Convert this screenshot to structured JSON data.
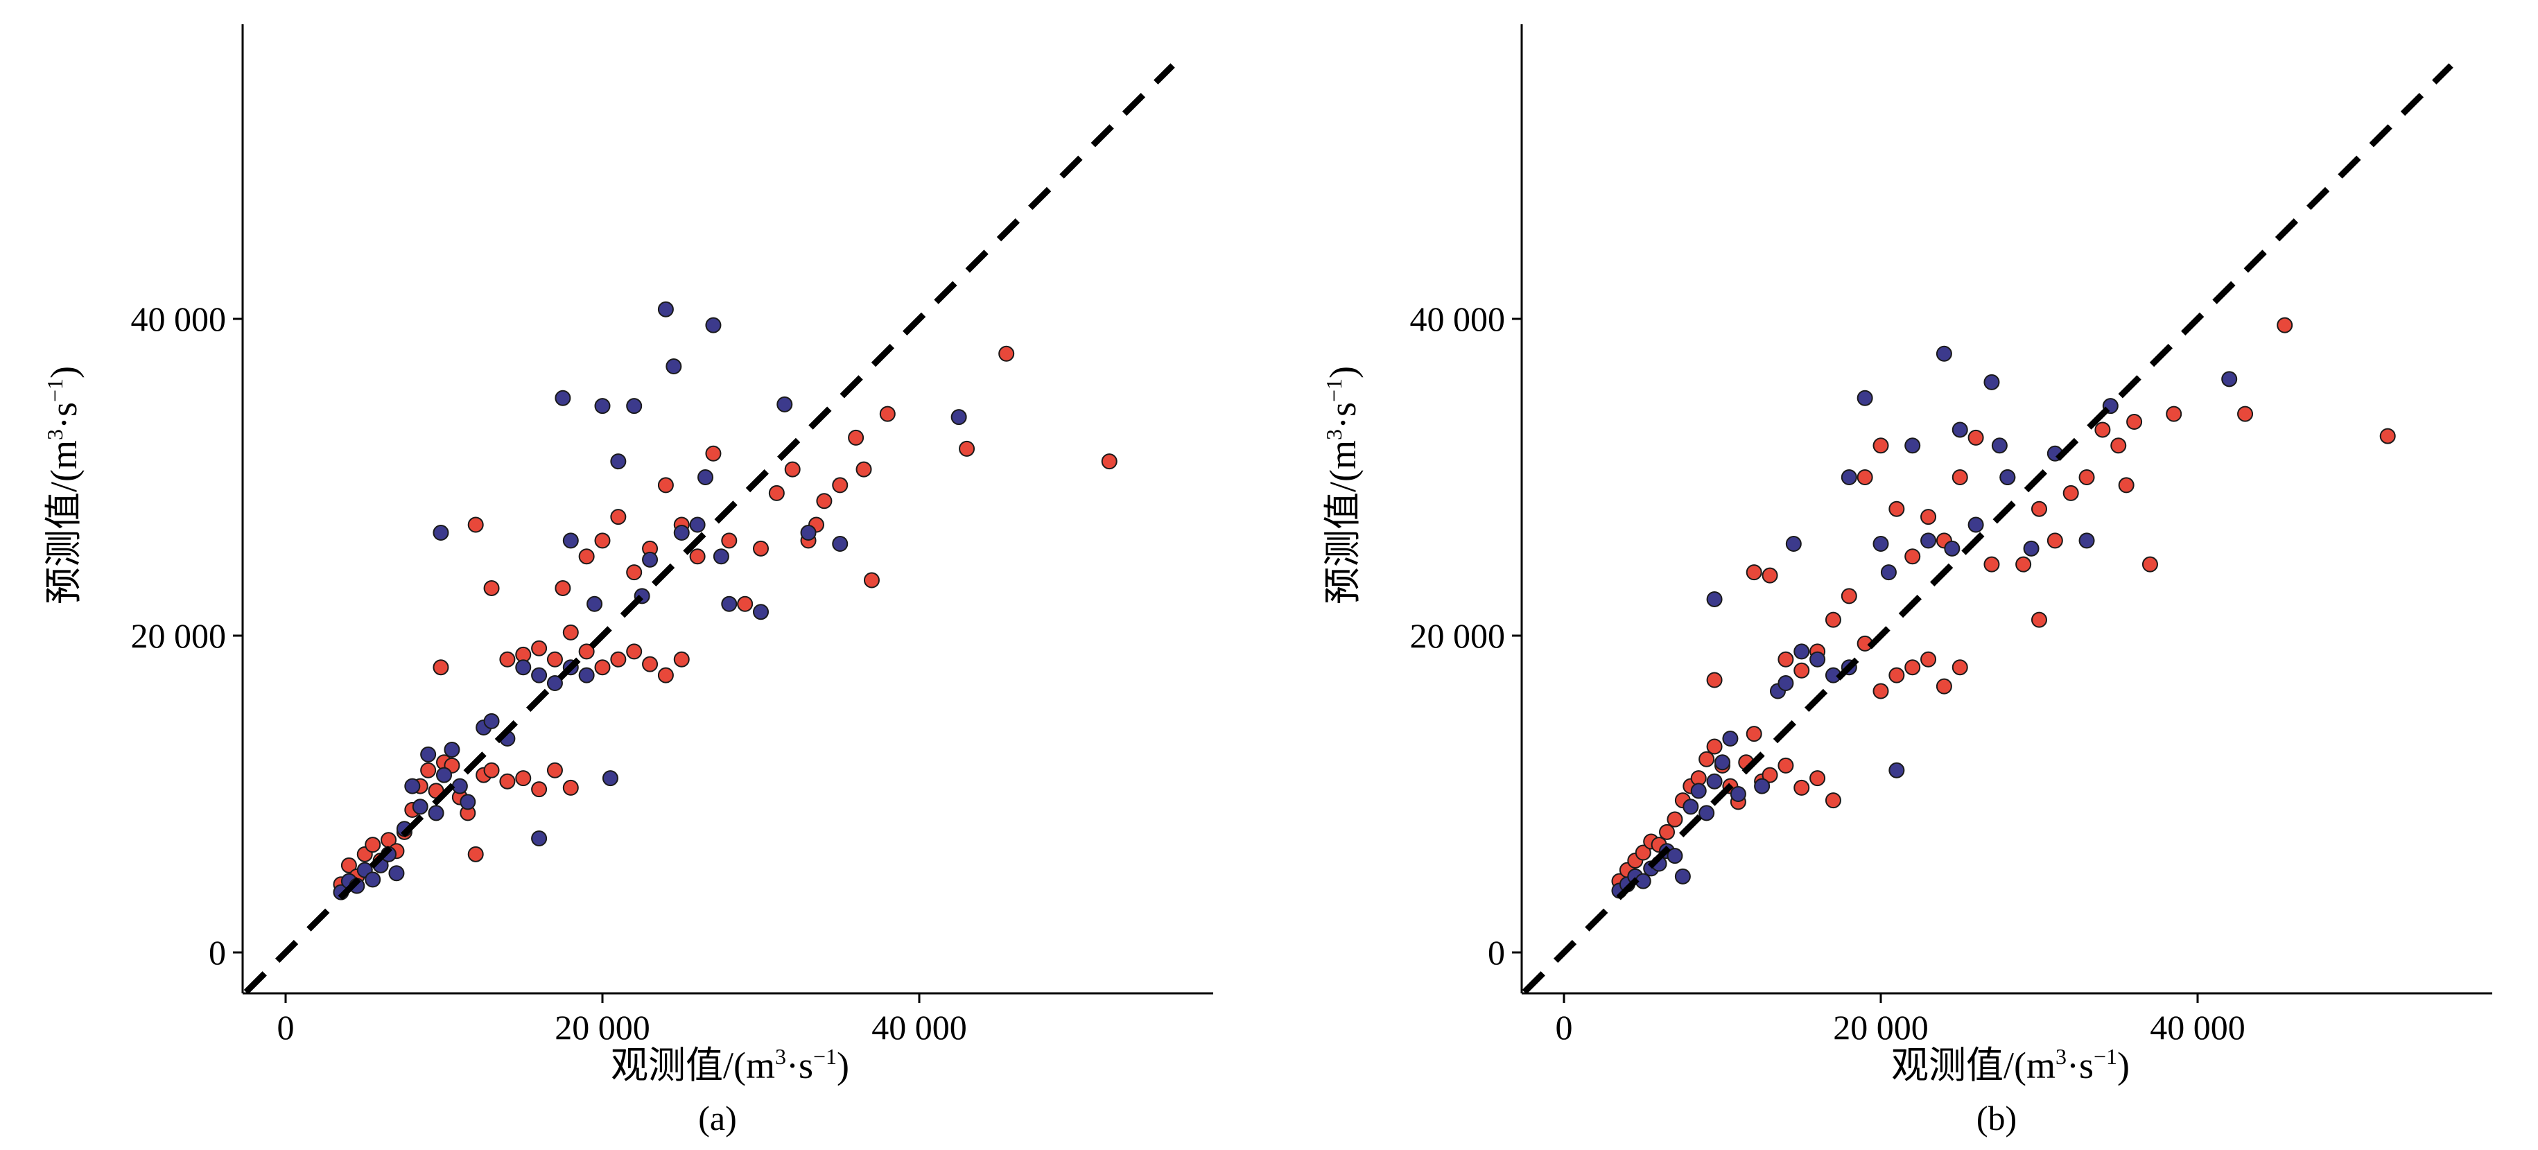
{
  "chart_data": [
    {
      "id": "a",
      "type": "scatter",
      "panel_label": "(a)",
      "xlabel": {
        "main": "观测值/(m",
        "sup1": "3",
        "mid": "·s",
        "sup2": "−1",
        "end": ")"
      },
      "ylabel": {
        "main": "预测值/(m",
        "sup1": "3",
        "mid": "·s",
        "sup2": "−1",
        "end": ")"
      },
      "xlim": [
        -2500,
        59000
      ],
      "ylim": [
        -2500,
        58000
      ],
      "xticks": [
        0,
        20000,
        40000
      ],
      "yticks": [
        0,
        20000,
        40000
      ],
      "xtick_labels": [
        "0",
        "20 000",
        "40 000"
      ],
      "ytick_labels": [
        "0",
        "20 000",
        "40 000"
      ],
      "reference_line": {
        "style": "dashed",
        "from": [
          -2500,
          -2500
        ],
        "to": [
          56000,
          56000
        ]
      },
      "series": [
        {
          "name": "red",
          "color": "#e8483a",
          "points": [
            [
              3500,
              4300
            ],
            [
              4000,
              5500
            ],
            [
              4500,
              4800
            ],
            [
              5000,
              6200
            ],
            [
              5500,
              6800
            ],
            [
              6000,
              5800
            ],
            [
              6500,
              7100
            ],
            [
              7000,
              6400
            ],
            [
              7500,
              7600
            ],
            [
              8000,
              9000
            ],
            [
              8500,
              10500
            ],
            [
              9000,
              11500
            ],
            [
              9500,
              10200
            ],
            [
              10000,
              12000
            ],
            [
              10500,
              11800
            ],
            [
              11000,
              9800
            ],
            [
              11500,
              8800
            ],
            [
              12000,
              6200
            ],
            [
              12500,
              11200
            ],
            [
              13000,
              11500
            ],
            [
              14000,
              10800
            ],
            [
              15000,
              11000
            ],
            [
              16000,
              10300
            ],
            [
              17000,
              11500
            ],
            [
              18000,
              10400
            ],
            [
              9800,
              18000
            ],
            [
              12000,
              27000
            ],
            [
              13000,
              23000
            ],
            [
              14000,
              18500
            ],
            [
              15000,
              18800
            ],
            [
              16000,
              19200
            ],
            [
              17000,
              18500
            ],
            [
              17500,
              23000
            ],
            [
              18000,
              20200
            ],
            [
              19000,
              19000
            ],
            [
              20000,
              18000
            ],
            [
              21000,
              18500
            ],
            [
              22000,
              19000
            ],
            [
              23000,
              18200
            ],
            [
              24000,
              17500
            ],
            [
              25000,
              18500
            ],
            [
              19000,
              25000
            ],
            [
              20000,
              26000
            ],
            [
              21000,
              27500
            ],
            [
              22000,
              24000
            ],
            [
              23000,
              25500
            ],
            [
              24000,
              29500
            ],
            [
              25000,
              27000
            ],
            [
              26000,
              25000
            ],
            [
              27000,
              31500
            ],
            [
              28000,
              26000
            ],
            [
              29000,
              22000
            ],
            [
              30000,
              25500
            ],
            [
              31000,
              29000
            ],
            [
              32000,
              30500
            ],
            [
              33000,
              26000
            ],
            [
              34000,
              28500
            ],
            [
              35000,
              29500
            ],
            [
              36000,
              32500
            ],
            [
              37000,
              23500
            ],
            [
              38000,
              34000
            ],
            [
              43000,
              31800
            ],
            [
              45500,
              37800
            ],
            [
              52000,
              31000
            ],
            [
              36500,
              30500
            ],
            [
              33500,
              27000
            ]
          ]
        },
        {
          "name": "blue",
          "color": "#3c3a8c",
          "points": [
            [
              3500,
              3800
            ],
            [
              4000,
              4500
            ],
            [
              4500,
              4200
            ],
            [
              5000,
              5200
            ],
            [
              5500,
              4600
            ],
            [
              6000,
              5500
            ],
            [
              6500,
              6200
            ],
            [
              7000,
              5000
            ],
            [
              7500,
              7800
            ],
            [
              8000,
              10500
            ],
            [
              8500,
              9200
            ],
            [
              9000,
              12500
            ],
            [
              9500,
              8800
            ],
            [
              10000,
              11200
            ],
            [
              10500,
              12800
            ],
            [
              11000,
              10500
            ],
            [
              11500,
              9500
            ],
            [
              12500,
              14200
            ],
            [
              13000,
              14600
            ],
            [
              14000,
              13500
            ],
            [
              15000,
              18000
            ],
            [
              16000,
              17500
            ],
            [
              17000,
              17000
            ],
            [
              17500,
              35000
            ],
            [
              18000,
              18000
            ],
            [
              19000,
              17500
            ],
            [
              20000,
              34500
            ],
            [
              21000,
              31000
            ],
            [
              22000,
              34500
            ],
            [
              23000,
              24800
            ],
            [
              24000,
              40600
            ],
            [
              24500,
              37000
            ],
            [
              27000,
              39600
            ],
            [
              16000,
              7200
            ],
            [
              20500,
              11000
            ],
            [
              9800,
              26500
            ],
            [
              25000,
              26500
            ],
            [
              26000,
              27000
            ],
            [
              27500,
              25000
            ],
            [
              28000,
              22000
            ],
            [
              30000,
              21500
            ],
            [
              31500,
              34600
            ],
            [
              33000,
              26500
            ],
            [
              35000,
              25800
            ],
            [
              42500,
              33800
            ],
            [
              18000,
              26000
            ],
            [
              19500,
              22000
            ],
            [
              22500,
              22500
            ],
            [
              26500,
              30000
            ]
          ]
        }
      ]
    },
    {
      "id": "b",
      "type": "scatter",
      "panel_label": "(b)",
      "xlabel": {
        "main": "观测值/(m",
        "sup1": "3",
        "mid": "·s",
        "sup2": "−1",
        "end": ")"
      },
      "ylabel": {
        "main": "预测值/(m",
        "sup1": "3",
        "mid": "·s",
        "sup2": "−1",
        "end": ")"
      },
      "xlim": [
        -2500,
        59000
      ],
      "ylim": [
        -2500,
        58000
      ],
      "xticks": [
        0,
        20000,
        40000
      ],
      "yticks": [
        0,
        20000,
        40000
      ],
      "xtick_labels": [
        "0",
        "20 000",
        "40 000"
      ],
      "ytick_labels": [
        "0",
        "20 000",
        "40 000"
      ],
      "reference_line": {
        "style": "dashed",
        "from": [
          -2500,
          -2500
        ],
        "to": [
          56000,
          56000
        ]
      },
      "series": [
        {
          "name": "red",
          "color": "#e8483a",
          "points": [
            [
              3500,
              4500
            ],
            [
              4000,
              5200
            ],
            [
              4500,
              5800
            ],
            [
              5000,
              6300
            ],
            [
              5500,
              7000
            ],
            [
              6000,
              6800
            ],
            [
              6500,
              7600
            ],
            [
              7000,
              8400
            ],
            [
              7500,
              9600
            ],
            [
              8000,
              10500
            ],
            [
              8500,
              11000
            ],
            [
              9000,
              12200
            ],
            [
              9500,
              13000
            ],
            [
              10000,
              11800
            ],
            [
              10500,
              10500
            ],
            [
              11000,
              9500
            ],
            [
              11500,
              12000
            ],
            [
              12000,
              13800
            ],
            [
              12500,
              10800
            ],
            [
              13000,
              11200
            ],
            [
              14000,
              11800
            ],
            [
              15000,
              10400
            ],
            [
              16000,
              11000
            ],
            [
              17000,
              9600
            ],
            [
              9500,
              17200
            ],
            [
              12000,
              24000
            ],
            [
              13000,
              23800
            ],
            [
              14000,
              18500
            ],
            [
              15000,
              17800
            ],
            [
              16000,
              19000
            ],
            [
              17000,
              21000
            ],
            [
              18000,
              22500
            ],
            [
              19000,
              19500
            ],
            [
              20000,
              16500
            ],
            [
              21000,
              17500
            ],
            [
              22000,
              18000
            ],
            [
              23000,
              18500
            ],
            [
              24000,
              16800
            ],
            [
              25000,
              18000
            ],
            [
              19000,
              30000
            ],
            [
              20000,
              32000
            ],
            [
              21000,
              28000
            ],
            [
              22000,
              25000
            ],
            [
              23000,
              27500
            ],
            [
              24000,
              26000
            ],
            [
              25000,
              30000
            ],
            [
              26000,
              32500
            ],
            [
              27000,
              24500
            ],
            [
              28000,
              30000
            ],
            [
              29000,
              24500
            ],
            [
              30000,
              28000
            ],
            [
              31000,
              26000
            ],
            [
              32000,
              29000
            ],
            [
              33000,
              30000
            ],
            [
              34000,
              33000
            ],
            [
              35000,
              32000
            ],
            [
              36000,
              33500
            ],
            [
              37000,
              24500
            ],
            [
              38500,
              34000
            ],
            [
              43000,
              34000
            ],
            [
              45500,
              39600
            ],
            [
              52000,
              32600
            ],
            [
              35500,
              29500
            ],
            [
              30000,
              21000
            ]
          ]
        },
        {
          "name": "blue",
          "color": "#3c3a8c",
          "points": [
            [
              3500,
              3900
            ],
            [
              4000,
              4300
            ],
            [
              4500,
              4800
            ],
            [
              5000,
              4500
            ],
            [
              5500,
              5300
            ],
            [
              6000,
              5600
            ],
            [
              6500,
              6400
            ],
            [
              7000,
              6100
            ],
            [
              7500,
              4800
            ],
            [
              8000,
              9200
            ],
            [
              8500,
              10200
            ],
            [
              9000,
              8800
            ],
            [
              9500,
              10800
            ],
            [
              10000,
              12000
            ],
            [
              10500,
              13500
            ],
            [
              11000,
              10000
            ],
            [
              12500,
              10500
            ],
            [
              13500,
              16500
            ],
            [
              14000,
              17000
            ],
            [
              15000,
              19000
            ],
            [
              16000,
              18500
            ],
            [
              17000,
              17500
            ],
            [
              18000,
              18000
            ],
            [
              19000,
              35000
            ],
            [
              20000,
              25800
            ],
            [
              21000,
              11500
            ],
            [
              22000,
              32000
            ],
            [
              23000,
              26000
            ],
            [
              24000,
              37800
            ],
            [
              25000,
              33000
            ],
            [
              26000,
              27000
            ],
            [
              27000,
              36000
            ],
            [
              9500,
              22300
            ],
            [
              14500,
              25800
            ],
            [
              28000,
              30000
            ],
            [
              29500,
              25500
            ],
            [
              31000,
              31500
            ],
            [
              33000,
              26000
            ],
            [
              34500,
              34500
            ],
            [
              42000,
              36200
            ],
            [
              18000,
              30000
            ],
            [
              20500,
              24000
            ],
            [
              24500,
              25500
            ],
            [
              27500,
              32000
            ]
          ]
        }
      ]
    }
  ]
}
